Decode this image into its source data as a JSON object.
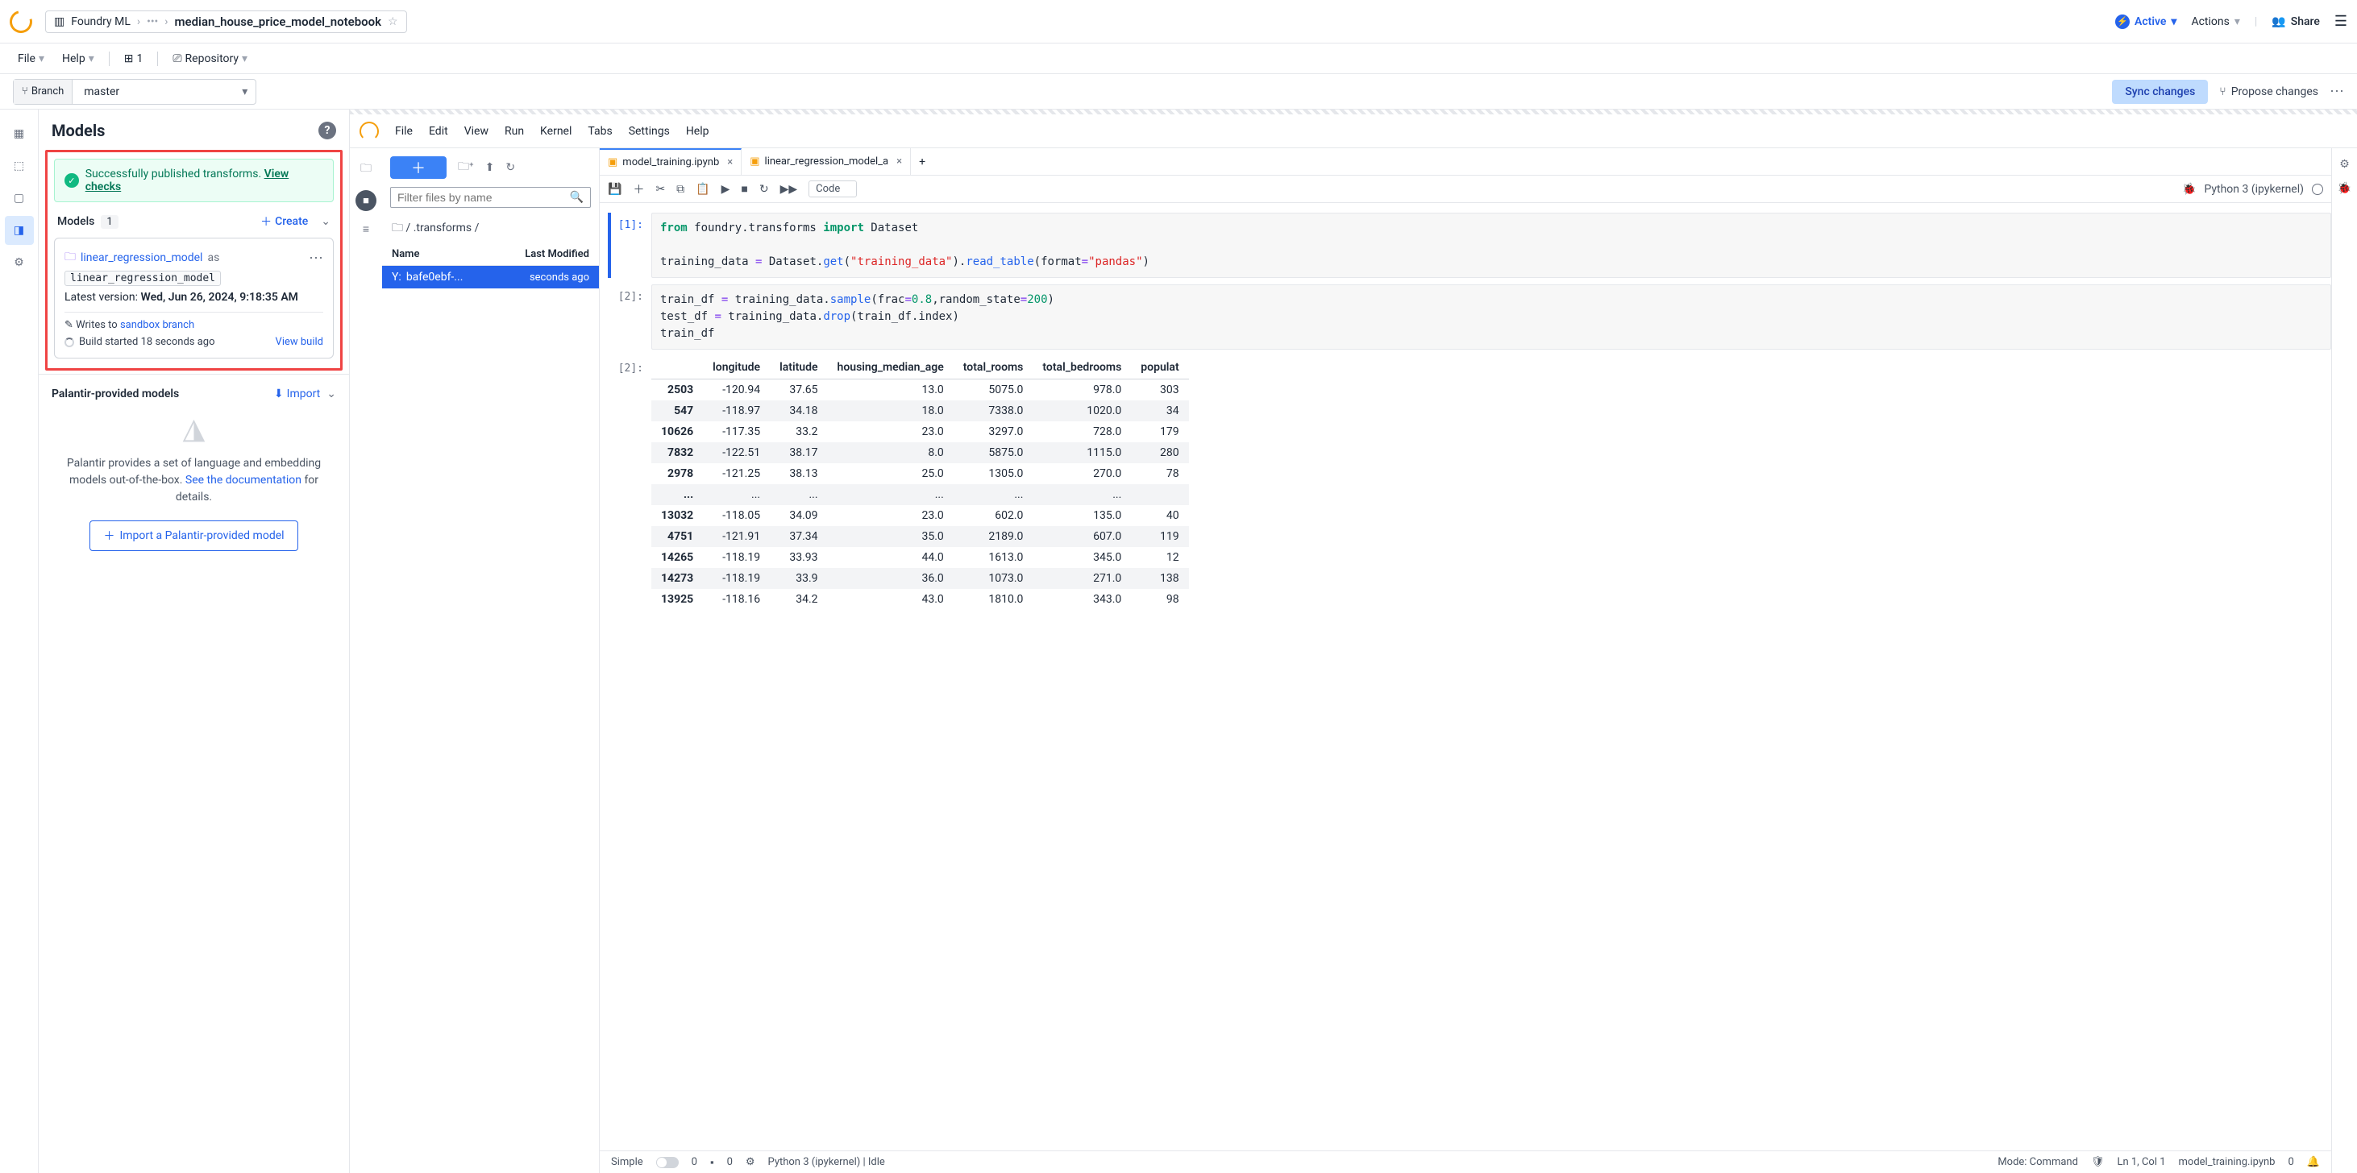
{
  "breadcrumb": {
    "root": "Foundry ML",
    "dots": "•••",
    "leaf": "median_house_price_model_notebook"
  },
  "topmenu": {
    "file": "File",
    "help": "Help",
    "one": "1",
    "repo": "Repository"
  },
  "top_right": {
    "active": "Active",
    "actions": "Actions",
    "share": "Share"
  },
  "branch": {
    "label": "Branch",
    "value": "master",
    "sync": "Sync changes",
    "propose": "Propose changes"
  },
  "panel": {
    "title": "Models",
    "banner_text": "Successfully published transforms. ",
    "banner_link": "View checks",
    "models_label": "Models",
    "models_count": "1",
    "create": "Create",
    "card": {
      "name": "linear_regression_model",
      "as": "as",
      "chip": "linear_regression_model",
      "latest_label": "Latest version: ",
      "latest_val": "Wed, Jun 26, 2024, 9:18:35 AM",
      "writes": "Writes to ",
      "writes_link": "sandbox branch",
      "build": "Build started 18 seconds ago",
      "view_build": "View build"
    },
    "pal": {
      "title": "Palantir-provided models",
      "import": "Import",
      "desc1": "Palantir provides a set of language and embedding models out-of-the-box. ",
      "desc_link": "See the documentation",
      "desc2": " for details.",
      "btn": "Import a Palantir-provided model"
    }
  },
  "jmenu": {
    "file": "File",
    "edit": "Edit",
    "view": "View",
    "run": "Run",
    "kernel": "Kernel",
    "tabs": "Tabs",
    "settings": "Settings",
    "help": "Help"
  },
  "files": {
    "filter_ph": "Filter files by name",
    "crumb": "/ .transforms /",
    "col_name": "Name",
    "col_mod": "Last Modified",
    "row_name": "bafe0ebf-...",
    "row_mod": "seconds ago"
  },
  "tabs": {
    "t1": "model_training.ipynb",
    "t2": "linear_regression_model_a"
  },
  "toolbar": {
    "code": "Code",
    "kernel": "Python 3 (ipykernel)"
  },
  "prompts": {
    "p1": "[1]:",
    "p2": "[2]:",
    "p2o": "[2]:"
  },
  "df": {
    "cols": [
      "",
      "longitude",
      "latitude",
      "housing_median_age",
      "total_rooms",
      "total_bedrooms",
      "populat"
    ],
    "rows": [
      [
        "2503",
        "-120.94",
        "37.65",
        "13.0",
        "5075.0",
        "978.0",
        "303"
      ],
      [
        "547",
        "-118.97",
        "34.18",
        "18.0",
        "7338.0",
        "1020.0",
        "34"
      ],
      [
        "10626",
        "-117.35",
        "33.2",
        "23.0",
        "3297.0",
        "728.0",
        "179"
      ],
      [
        "7832",
        "-122.51",
        "38.17",
        "8.0",
        "5875.0",
        "1115.0",
        "280"
      ],
      [
        "2978",
        "-121.25",
        "38.13",
        "25.0",
        "1305.0",
        "270.0",
        "78"
      ],
      [
        "...",
        "...",
        "...",
        "...",
        "...",
        "...",
        ""
      ],
      [
        "13032",
        "-118.05",
        "34.09",
        "23.0",
        "602.0",
        "135.0",
        "40"
      ],
      [
        "4751",
        "-121.91",
        "37.34",
        "35.0",
        "2189.0",
        "607.0",
        "119"
      ],
      [
        "14265",
        "-118.19",
        "33.93",
        "44.0",
        "1613.0",
        "345.0",
        "12"
      ],
      [
        "14273",
        "-118.19",
        "33.9",
        "36.0",
        "1073.0",
        "271.0",
        "138"
      ],
      [
        "13925",
        "-118.16",
        "34.2",
        "43.0",
        "1810.0",
        "343.0",
        "98"
      ]
    ]
  },
  "status": {
    "simple": "Simple",
    "z1": "0",
    "z2": "0",
    "kernel": "Python 3 (ipykernel) | Idle",
    "mode": "Mode: Command",
    "pos": "Ln 1, Col 1",
    "file": "model_training.ipynb",
    "z3": "0"
  }
}
